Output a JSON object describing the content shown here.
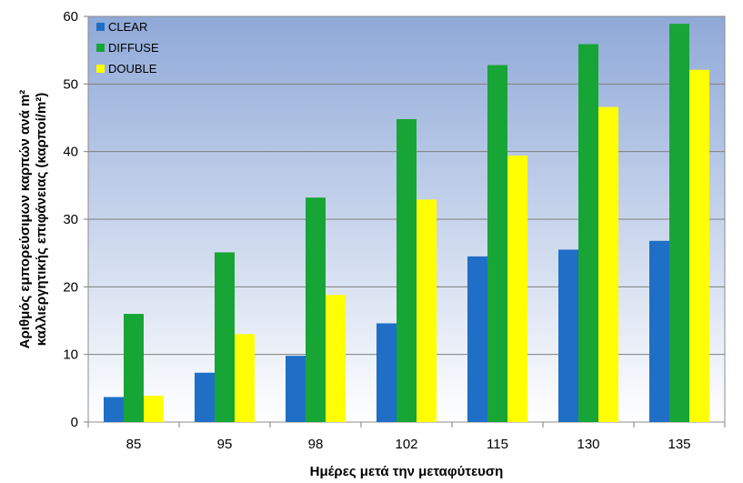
{
  "chart_data": {
    "type": "bar",
    "title": "",
    "xlabel": "Ημέρες μετά την μεταφύτευση",
    "ylabel_line1": "Αριθμός εμπορεύσιμων καρπών ανά m²",
    "ylabel_line2": "καλλιεργητικής επιφάνειας (καρποί/m²)",
    "categories": [
      "85",
      "95",
      "98",
      "102",
      "115",
      "130",
      "135"
    ],
    "ylim": [
      0,
      60
    ],
    "yticks": [
      0,
      10,
      20,
      30,
      40,
      50,
      60
    ],
    "grid": true,
    "legend_position": "top-left",
    "series": [
      {
        "name": "CLEAR",
        "color": "#1f6fc6",
        "values": [
          3.7,
          7.3,
          9.8,
          14.6,
          24.5,
          25.5,
          26.8
        ]
      },
      {
        "name": "DIFFUSE",
        "color": "#17a535",
        "values": [
          16.0,
          25.1,
          33.2,
          44.8,
          52.8,
          55.9,
          58.9
        ]
      },
      {
        "name": "DOUBLE",
        "color": "#ffff00",
        "values": [
          3.9,
          13.0,
          18.8,
          32.9,
          39.4,
          46.6,
          52.1
        ]
      }
    ]
  }
}
